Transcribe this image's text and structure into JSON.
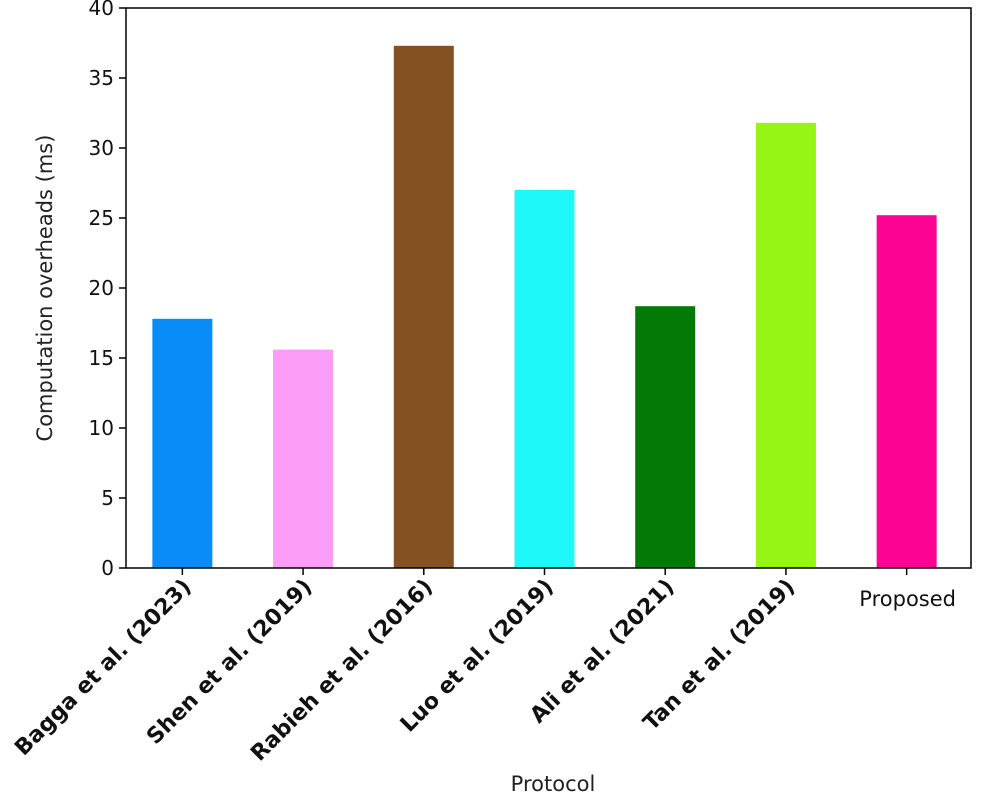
{
  "chart_data": {
    "type": "bar",
    "title": "",
    "xlabel": "Protocol",
    "ylabel": "Computation overheads (ms)",
    "categories": [
      "Bagga et al. (2023)",
      "Shen et al. (2019)",
      "Rabieh et al. (2016)",
      "Luo et al. (2019)",
      "Ali et al. (2021)",
      "Tan et al. (2019)",
      "Proposed"
    ],
    "values": [
      17.8,
      15.6,
      37.3,
      27.0,
      18.7,
      31.8,
      25.2
    ],
    "colors": [
      "#0a8cf7",
      "#fb9cf7",
      "#845124",
      "#1ef8f8",
      "#037a05",
      "#96f514",
      "#fc0394"
    ],
    "ylim": [
      0,
      40
    ],
    "yticks": [
      0,
      5,
      10,
      15,
      20,
      25,
      30,
      35,
      40
    ],
    "grid": false,
    "legend": "none",
    "rotated_categories": [
      true,
      true,
      true,
      true,
      true,
      true,
      false
    ]
  }
}
